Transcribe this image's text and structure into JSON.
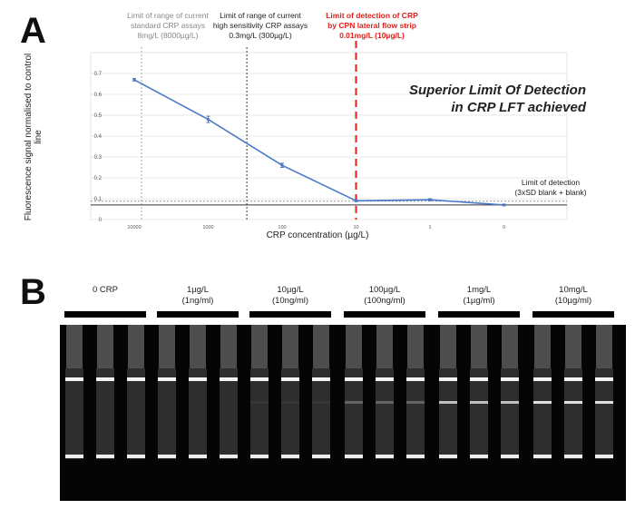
{
  "panels": {
    "a_label": "A",
    "b_label": "B"
  },
  "annotations": {
    "standard": [
      "Limit of range of current",
      "standard CRP assays",
      "8mg/L (8000µg/L)"
    ],
    "high_sensitivity": [
      "Limit of range of current",
      "high sensitivity CRP assays",
      "0.3mg/L (300µg/L)"
    ],
    "cpn_lfs": [
      "Limit of detection of CRP",
      "by CPN lateral flow strip",
      "0.01mg/L (10µg/L)"
    ],
    "headline": [
      "Superior Limit Of Detection",
      "in CRP LFT achieved"
    ],
    "lod": [
      "Limit of detection",
      "(3xSD blank + blank)"
    ]
  },
  "colors": {
    "series": "#4a79c7",
    "cpn_line": "#e0201b",
    "guide_line": "#555555",
    "lod_line": "#333333"
  },
  "chart_data": {
    "type": "line",
    "x_scale": "log, reversed",
    "categories": [
      "10000",
      "1000",
      "100",
      "10",
      "1",
      "0"
    ],
    "x": [
      10000,
      1000,
      100,
      10,
      1,
      0
    ],
    "series": [
      {
        "values": [
          0.67,
          0.48,
          0.26,
          0.09,
          0.095,
          0.07
        ]
      }
    ],
    "error_bars": [
      0.006,
      0.015,
      0.01,
      0.004,
      0.005,
      0.004
    ],
    "yticks": [
      "0",
      "0.1",
      "0.2",
      "0.3",
      "0.4",
      "0.5",
      "0.6",
      "0.7"
    ],
    "ylim": [
      0,
      0.8
    ],
    "xlabel": "CRP concentration (µg/L)",
    "ylabel": "Fluorescence signal normalised to control line",
    "vertical_markers": [
      {
        "x": 8000,
        "style": "dotted",
        "color": "#aaaaaa"
      },
      {
        "x": 300,
        "style": "dotted",
        "color": "#333333"
      },
      {
        "x": 10,
        "style": "dashed",
        "color": "#e0201b"
      }
    ],
    "limit_of_detection": 0.07,
    "grid": true
  },
  "gel": {
    "groups": [
      {
        "label": [
          "0 CRP"
        ],
        "test_line": 0
      },
      {
        "label": [
          "1µg/L",
          "(1ng/ml)"
        ],
        "test_line": 0
      },
      {
        "label": [
          "10µg/L",
          "(10ng/ml)"
        ],
        "test_line": 0.05
      },
      {
        "label": [
          "100µg/L",
          "(100ng/ml)"
        ],
        "test_line": 0.25
      },
      {
        "label": [
          "1mg/L",
          "(1µg/ml)"
        ],
        "test_line": 0.7
      },
      {
        "label": [
          "10mg/L",
          "(10µg/ml)"
        ],
        "test_line": 0.85
      }
    ]
  }
}
